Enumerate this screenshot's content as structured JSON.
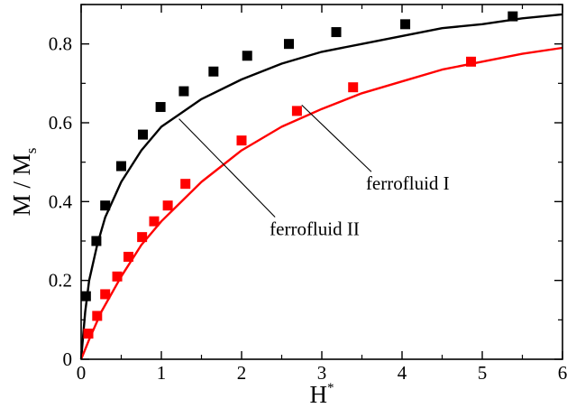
{
  "chart_data": {
    "type": "scatter",
    "xlabel": "H",
    "xlabel_sup": "*",
    "ylabel": "M / M",
    "ylabel_sub": "s",
    "xlim": [
      0,
      6
    ],
    "ylim": [
      0,
      0.9
    ],
    "xticks": [
      0,
      1,
      2,
      3,
      4,
      5,
      6
    ],
    "yticks": [
      0,
      0.2,
      0.4,
      0.6,
      0.8
    ],
    "xtick_labels": [
      "0",
      "1",
      "2",
      "3",
      "4",
      "5",
      "6"
    ],
    "ytick_labels": [
      "0",
      "0.2",
      "0.4",
      "0.6",
      "0.8"
    ],
    "grid": false,
    "legend": "none",
    "series": [
      {
        "color": "#000000",
        "points": [
          [
            0.06,
            0.16
          ],
          [
            0.19,
            0.3
          ],
          [
            0.3,
            0.39
          ],
          [
            0.5,
            0.49
          ],
          [
            0.77,
            0.57
          ],
          [
            0.99,
            0.64
          ],
          [
            1.28,
            0.68
          ],
          [
            1.65,
            0.73
          ],
          [
            2.07,
            0.77
          ],
          [
            2.59,
            0.8
          ],
          [
            3.18,
            0.83
          ],
          [
            4.04,
            0.85
          ],
          [
            5.38,
            0.87
          ]
        ],
        "fit_curve": [
          [
            0,
            0.0
          ],
          [
            0.05,
            0.12
          ],
          [
            0.1,
            0.2
          ],
          [
            0.2,
            0.29
          ],
          [
            0.3,
            0.36
          ],
          [
            0.5,
            0.45
          ],
          [
            0.75,
            0.53
          ],
          [
            1.0,
            0.59
          ],
          [
            1.5,
            0.66
          ],
          [
            2.0,
            0.71
          ],
          [
            2.5,
            0.75
          ],
          [
            3.0,
            0.78
          ],
          [
            3.5,
            0.8
          ],
          [
            4.0,
            0.82
          ],
          [
            4.5,
            0.84
          ],
          [
            5.0,
            0.85
          ],
          [
            5.5,
            0.865
          ],
          [
            6.0,
            0.875
          ]
        ]
      },
      {
        "color": "#ff0000",
        "points": [
          [
            0.09,
            0.065
          ],
          [
            0.2,
            0.11
          ],
          [
            0.3,
            0.165
          ],
          [
            0.45,
            0.21
          ],
          [
            0.59,
            0.26
          ],
          [
            0.76,
            0.31
          ],
          [
            0.91,
            0.35
          ],
          [
            1.08,
            0.39
          ],
          [
            1.3,
            0.445
          ],
          [
            2.0,
            0.555
          ],
          [
            2.69,
            0.63
          ],
          [
            3.39,
            0.69
          ],
          [
            4.86,
            0.755
          ]
        ],
        "fit_curve": [
          [
            0,
            0.0
          ],
          [
            0.1,
            0.05
          ],
          [
            0.25,
            0.12
          ],
          [
            0.5,
            0.21
          ],
          [
            0.75,
            0.29
          ],
          [
            1.0,
            0.35
          ],
          [
            1.5,
            0.45
          ],
          [
            2.0,
            0.53
          ],
          [
            2.5,
            0.59
          ],
          [
            3.0,
            0.635
          ],
          [
            3.5,
            0.675
          ],
          [
            4.0,
            0.705
          ],
          [
            4.5,
            0.735
          ],
          [
            5.0,
            0.755
          ],
          [
            5.5,
            0.775
          ],
          [
            6.0,
            0.79
          ]
        ]
      }
    ],
    "annotations": [
      {
        "text": "ferrofluid I",
        "text_at": [
          3.55,
          0.43
        ],
        "points_to": [
          2.75,
          0.645
        ]
      },
      {
        "text": "ferrofluid II",
        "text_at": [
          2.35,
          0.315
        ],
        "points_to": [
          1.22,
          0.61
        ]
      }
    ]
  }
}
